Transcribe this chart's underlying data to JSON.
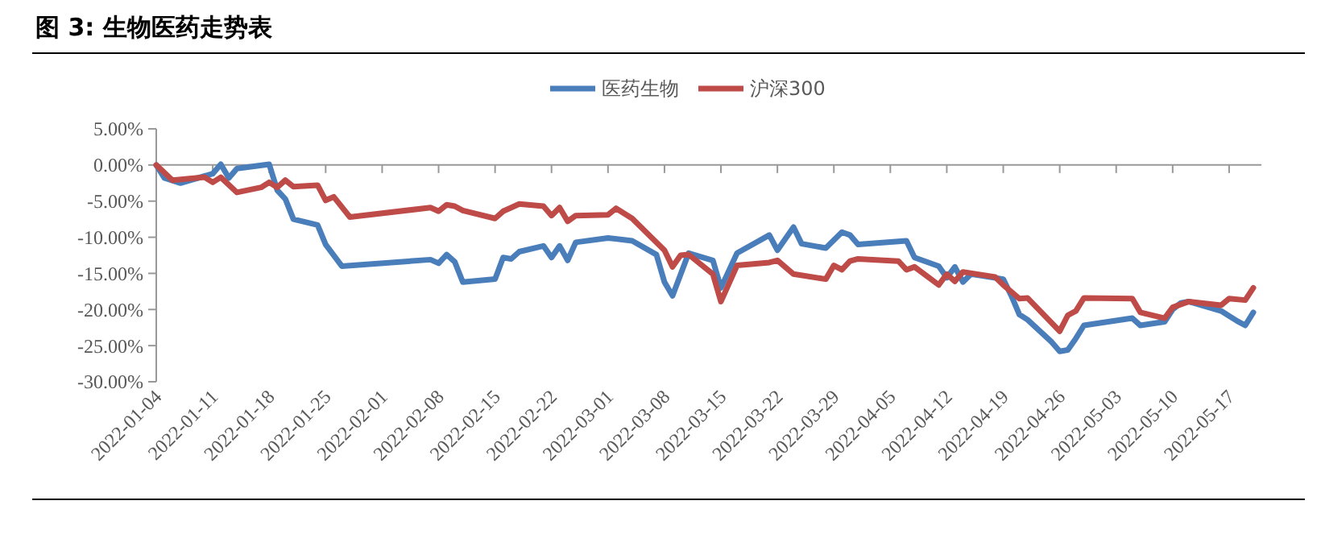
{
  "chart_data": {
    "type": "line",
    "title": "图 3: 生物医药走势表",
    "xlim": [
      "2022-01-04",
      "2022-05-21"
    ],
    "xticks": [
      "2022-01-04",
      "2022-01-11",
      "2022-01-18",
      "2022-01-25",
      "2022-02-01",
      "2022-02-08",
      "2022-02-15",
      "2022-02-22",
      "2022-03-01",
      "2022-03-08",
      "2022-03-15",
      "2022-03-22",
      "2022-03-29",
      "2022-04-05",
      "2022-04-12",
      "2022-04-19",
      "2022-04-26",
      "2022-05-03",
      "2022-05-10",
      "2022-05-17"
    ],
    "ylim": [
      -30,
      5
    ],
    "yticks": [
      {
        "value": 5,
        "label": "5.00%"
      },
      {
        "value": 0,
        "label": "0.00%"
      },
      {
        "value": -5,
        "label": "-5.00%"
      },
      {
        "value": -10,
        "label": "-10.00%"
      },
      {
        "value": -15,
        "label": "-15.00%"
      },
      {
        "value": -20,
        "label": "-20.00%"
      },
      {
        "value": -25,
        "label": "-25.00%"
      },
      {
        "value": -30,
        "label": "-30.00%"
      }
    ],
    "legend": "top",
    "marker": "none",
    "line_style": "solid",
    "series": [
      {
        "name": "医药生物",
        "color": "#4a7ebb",
        "x": [
          "2022-01-04",
          "2022-01-05",
          "2022-01-07",
          "2022-01-11",
          "2022-01-12",
          "2022-01-13",
          "2022-01-14",
          "2022-01-18",
          "2022-01-19",
          "2022-01-20",
          "2022-01-21",
          "2022-01-24",
          "2022-01-25",
          "2022-01-27",
          "2022-02-07",
          "2022-02-08",
          "2022-02-09",
          "2022-02-10",
          "2022-02-11",
          "2022-02-15",
          "2022-02-16",
          "2022-02-17",
          "2022-02-18",
          "2022-02-21",
          "2022-02-22",
          "2022-02-23",
          "2022-02-24",
          "2022-02-25",
          "2022-03-01",
          "2022-03-04",
          "2022-03-07",
          "2022-03-08",
          "2022-03-09",
          "2022-03-11",
          "2022-03-14",
          "2022-03-15",
          "2022-03-17",
          "2022-03-21",
          "2022-03-22",
          "2022-03-24",
          "2022-03-25",
          "2022-03-28",
          "2022-03-30",
          "2022-03-31",
          "2022-04-01",
          "2022-04-07",
          "2022-04-08",
          "2022-04-11",
          "2022-04-12",
          "2022-04-13",
          "2022-04-14",
          "2022-04-15",
          "2022-04-19",
          "2022-04-20",
          "2022-04-21",
          "2022-04-22",
          "2022-04-25",
          "2022-04-26",
          "2022-04-27",
          "2022-04-28",
          "2022-04-29",
          "2022-05-05",
          "2022-05-06",
          "2022-05-09",
          "2022-05-10",
          "2022-05-11",
          "2022-05-12",
          "2022-05-16",
          "2022-05-18",
          "2022-05-19",
          "2022-05-20"
        ],
        "values": [
          0,
          -1.8,
          -2.5,
          -1.2,
          0.1,
          -1.8,
          -0.5,
          0.1,
          -3.5,
          -4.7,
          -7.5,
          -8.3,
          -11,
          -14,
          -13.1,
          -13.6,
          -12.4,
          -13.4,
          -16.2,
          -15.8,
          -12.8,
          -13,
          -12,
          -11.2,
          -12.8,
          -11.2,
          -13.2,
          -10.7,
          -10.1,
          -10.5,
          -12.4,
          -16.2,
          -18.1,
          -12.2,
          -13.2,
          -17,
          -12.2,
          -9.7,
          -11.8,
          -8.6,
          -10.9,
          -11.5,
          -9.3,
          -9.7,
          -11,
          -10.5,
          -12.8,
          -14,
          -15.6,
          -14.1,
          -16.2,
          -15.1,
          -15.8,
          -18.1,
          -20.7,
          -21.4,
          -24.5,
          -25.8,
          -25.6,
          -24,
          -22.2,
          -21.2,
          -22.2,
          -21.7,
          -20,
          -19.1,
          -18.9,
          -20.2,
          -21.6,
          -22.2,
          -20.4
        ]
      },
      {
        "name": "沪深300",
        "color": "#be4b48",
        "x": [
          "2022-01-04",
          "2022-01-06",
          "2022-01-10",
          "2022-01-11",
          "2022-01-12",
          "2022-01-14",
          "2022-01-17",
          "2022-01-18",
          "2022-01-19",
          "2022-01-20",
          "2022-01-21",
          "2022-01-24",
          "2022-01-25",
          "2022-01-26",
          "2022-01-28",
          "2022-02-07",
          "2022-02-08",
          "2022-02-09",
          "2022-02-10",
          "2022-02-11",
          "2022-02-15",
          "2022-02-16",
          "2022-02-18",
          "2022-02-21",
          "2022-02-22",
          "2022-02-23",
          "2022-02-24",
          "2022-02-25",
          "2022-03-01",
          "2022-03-02",
          "2022-03-04",
          "2022-03-08",
          "2022-03-09",
          "2022-03-10",
          "2022-03-11",
          "2022-03-14",
          "2022-03-15",
          "2022-03-17",
          "2022-03-21",
          "2022-03-22",
          "2022-03-24",
          "2022-03-28",
          "2022-03-29",
          "2022-03-30",
          "2022-03-31",
          "2022-04-01",
          "2022-04-06",
          "2022-04-07",
          "2022-04-08",
          "2022-04-11",
          "2022-04-12",
          "2022-04-13",
          "2022-04-14",
          "2022-04-18",
          "2022-04-19",
          "2022-04-21",
          "2022-04-22",
          "2022-04-26",
          "2022-04-27",
          "2022-04-28",
          "2022-04-29",
          "2022-05-05",
          "2022-05-06",
          "2022-05-09",
          "2022-05-10",
          "2022-05-12",
          "2022-05-16",
          "2022-05-17",
          "2022-05-19",
          "2022-05-20"
        ],
        "values": [
          0,
          -2.1,
          -1.7,
          -2.4,
          -1.7,
          -3.8,
          -3.1,
          -2.4,
          -3.1,
          -2.1,
          -3,
          -2.8,
          -4.9,
          -4.4,
          -7.2,
          -5.9,
          -6.4,
          -5.5,
          -5.7,
          -6.3,
          -7.4,
          -6.4,
          -5.4,
          -5.7,
          -7,
          -5.9,
          -7.8,
          -7,
          -6.9,
          -6,
          -7.4,
          -11.8,
          -14.1,
          -12.5,
          -12.4,
          -15.1,
          -18.9,
          -13.9,
          -13.5,
          -13.2,
          -15.1,
          -15.8,
          -13.9,
          -14.5,
          -13.3,
          -13,
          -13.3,
          -14.5,
          -14.1,
          -16.6,
          -15.1,
          -16.1,
          -14.8,
          -15.5,
          -16.6,
          -18.5,
          -18.4,
          -23,
          -20.8,
          -20.2,
          -18.4,
          -18.5,
          -20.4,
          -21.2,
          -19.7,
          -18.9,
          -19.4,
          -18.5,
          -18.7,
          -17
        ]
      }
    ]
  }
}
